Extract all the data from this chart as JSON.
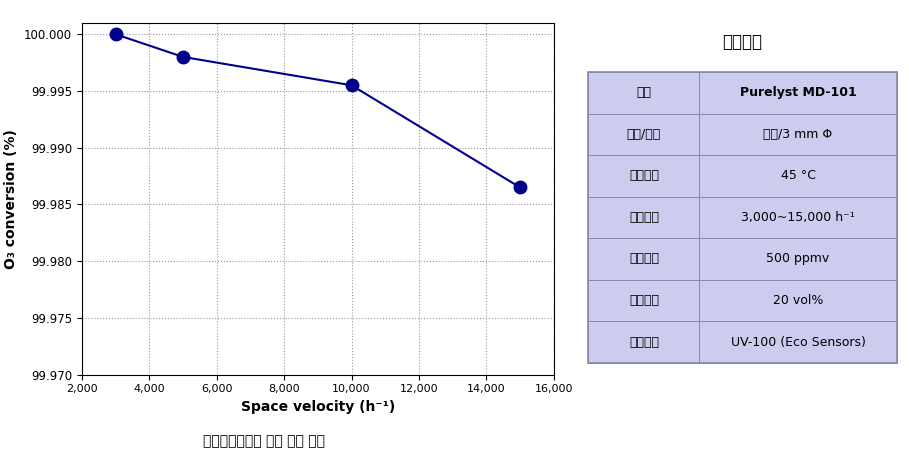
{
  "x_data": [
    3000,
    5000,
    10000,
    15000
  ],
  "y_data": [
    100.0,
    99.998,
    99.9955,
    99.9865
  ],
  "line_color": "#00008B",
  "marker_color": "#00008B",
  "xlabel": "Space velocity (h⁻¹)",
  "ylabel": "O₃ conversion (%)",
  "xlim": [
    2000,
    16000
  ],
  "ylim": [
    99.97,
    100.001
  ],
  "xticks": [
    2000,
    4000,
    6000,
    8000,
    10000,
    12000,
    14000,
    16000
  ],
  "yticks": [
    99.97,
    99.975,
    99.98,
    99.985,
    99.99,
    99.995,
    100.0
  ],
  "caption": "무게공간속도별 오존 분해 효율",
  "table_title": "실험조건",
  "table_rows": [
    [
      "촉매",
      "Purelyst MD-101"
    ],
    [
      "형태/크기",
      "펜렟/3 mm Φ"
    ],
    [
      "반응온도",
      "45 °C"
    ],
    [
      "공간속도",
      "3,000~15,000 h⁻¹"
    ],
    [
      "오존농도",
      "500 ppmv"
    ],
    [
      "산소농도",
      "20 vol%"
    ],
    [
      "측정기기",
      "UV-100 (Eco Sensors)"
    ]
  ],
  "table_header_bg": "#9999cc",
  "table_row_bg": "#ccccee",
  "table_border_color": "#8888aa",
  "background_color": "#ffffff"
}
